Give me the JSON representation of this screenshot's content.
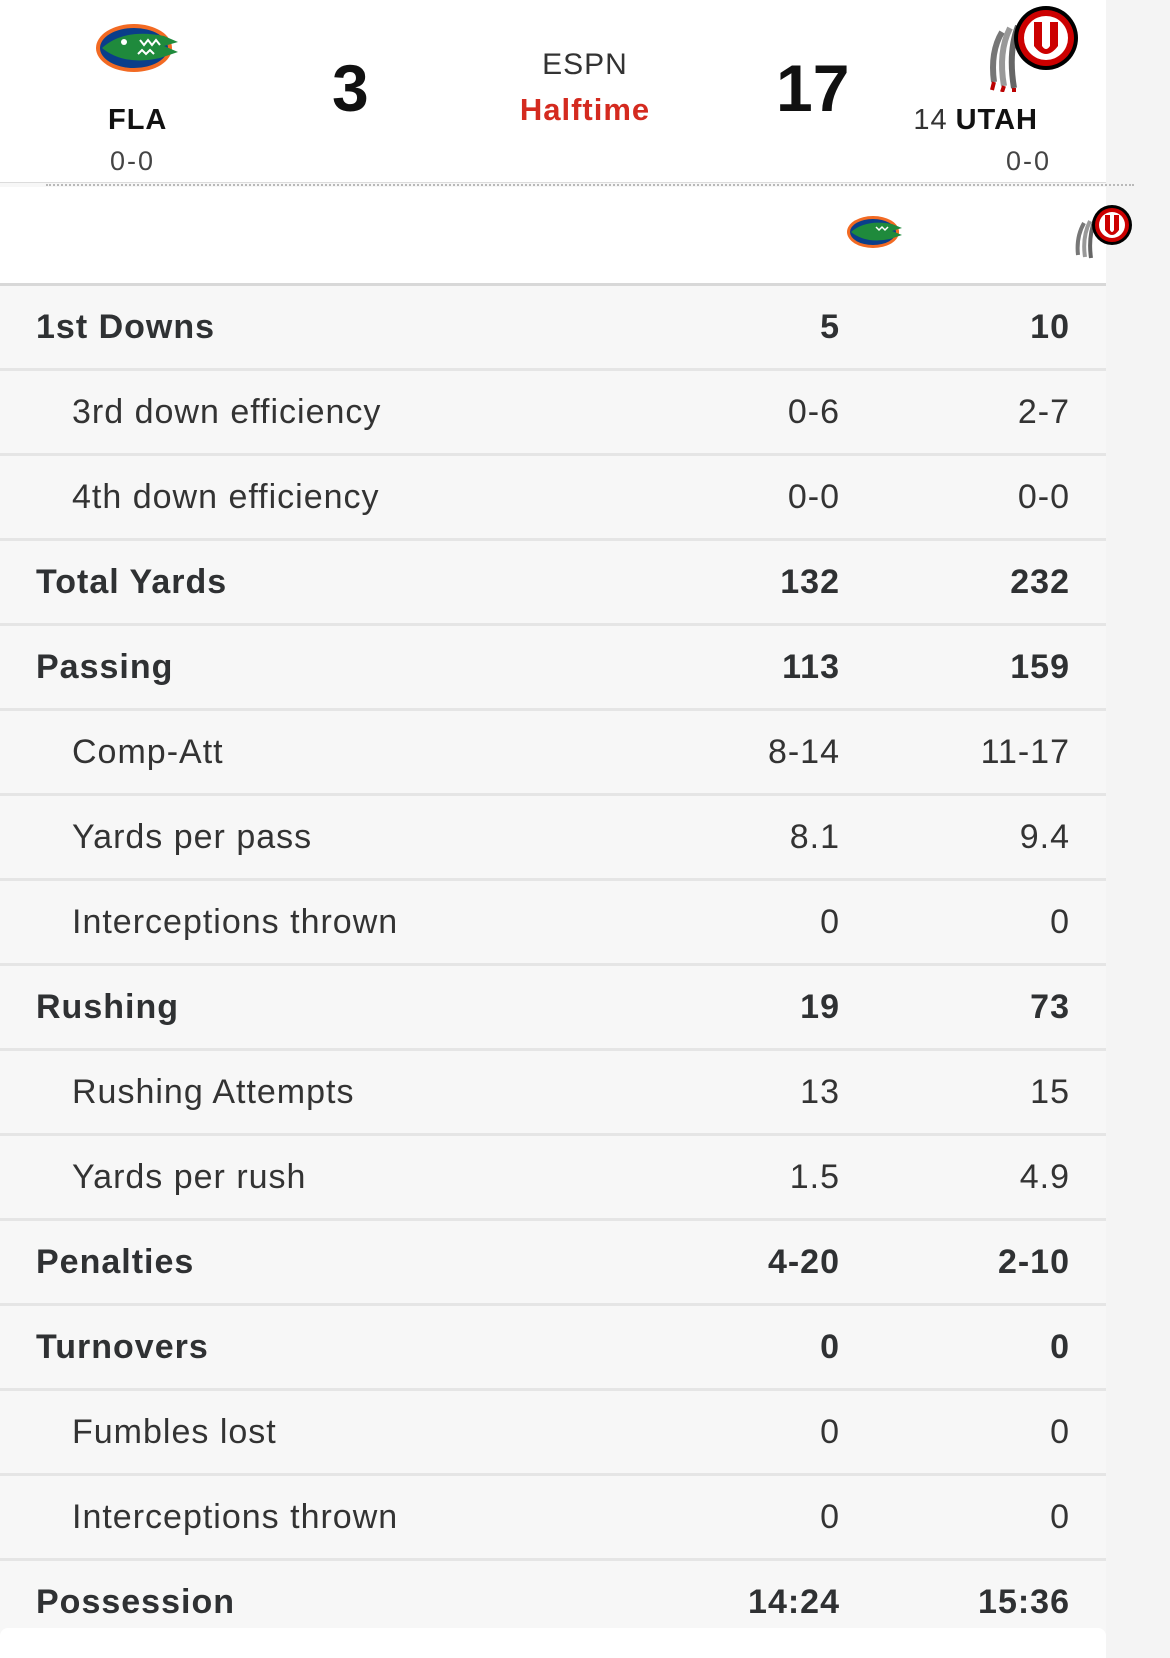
{
  "header": {
    "away": {
      "abbr": "FLA",
      "record": "0-0",
      "score": "3",
      "logo": "florida-gator-logo"
    },
    "home": {
      "rank": "14",
      "abbr": "UTAH",
      "record": "0-0",
      "score": "17",
      "logo": "utah-utes-logo"
    },
    "network": "ESPN",
    "status": "Halftime",
    "status_color": "#d42a1f"
  },
  "stats": [
    {
      "label": "1st Downs",
      "away": "5",
      "home": "10",
      "type": "main"
    },
    {
      "label": "3rd down efficiency",
      "away": "0-6",
      "home": "2-7",
      "type": "sub"
    },
    {
      "label": "4th down efficiency",
      "away": "0-0",
      "home": "0-0",
      "type": "sub"
    },
    {
      "label": "Total Yards",
      "away": "132",
      "home": "232",
      "type": "main"
    },
    {
      "label": "Passing",
      "away": "113",
      "home": "159",
      "type": "main"
    },
    {
      "label": "Comp-Att",
      "away": "8-14",
      "home": "11-17",
      "type": "sub"
    },
    {
      "label": "Yards per pass",
      "away": "8.1",
      "home": "9.4",
      "type": "sub"
    },
    {
      "label": "Interceptions thrown",
      "away": "0",
      "home": "0",
      "type": "sub"
    },
    {
      "label": "Rushing",
      "away": "19",
      "home": "73",
      "type": "main"
    },
    {
      "label": "Rushing Attempts",
      "away": "13",
      "home": "15",
      "type": "sub"
    },
    {
      "label": "Yards per rush",
      "away": "1.5",
      "home": "4.9",
      "type": "sub"
    },
    {
      "label": "Penalties",
      "away": "4-20",
      "home": "2-10",
      "type": "main"
    },
    {
      "label": "Turnovers",
      "away": "0",
      "home": "0",
      "type": "main"
    },
    {
      "label": "Fumbles lost",
      "away": "0",
      "home": "0",
      "type": "sub"
    },
    {
      "label": "Interceptions thrown",
      "away": "0",
      "home": "0",
      "type": "sub"
    },
    {
      "label": "Possession",
      "away": "14:24",
      "home": "15:36",
      "type": "main"
    }
  ]
}
